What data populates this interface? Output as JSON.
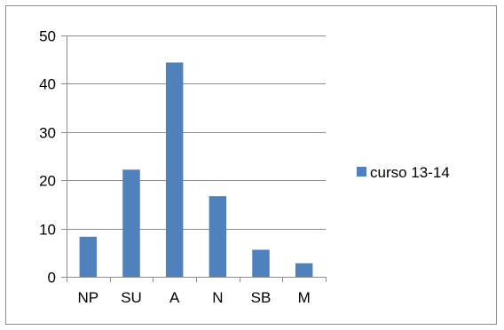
{
  "chart_data": {
    "type": "bar",
    "categories": [
      "NP",
      "SU",
      "A",
      "N",
      "SB",
      "M"
    ],
    "series": [
      {
        "name": "curso 13-14",
        "values": [
          8.3,
          22.2,
          44.4,
          16.7,
          5.6,
          2.8
        ]
      }
    ],
    "title": "",
    "xlabel": "",
    "ylabel": "",
    "ylim": [
      0,
      50
    ],
    "yticks": [
      0,
      10,
      20,
      30,
      40,
      50
    ],
    "grid": true,
    "legend": "right",
    "colors": {
      "bar": "#4f81bd",
      "grid": "#8c8c8c",
      "axis": "#8c8c8c"
    }
  }
}
